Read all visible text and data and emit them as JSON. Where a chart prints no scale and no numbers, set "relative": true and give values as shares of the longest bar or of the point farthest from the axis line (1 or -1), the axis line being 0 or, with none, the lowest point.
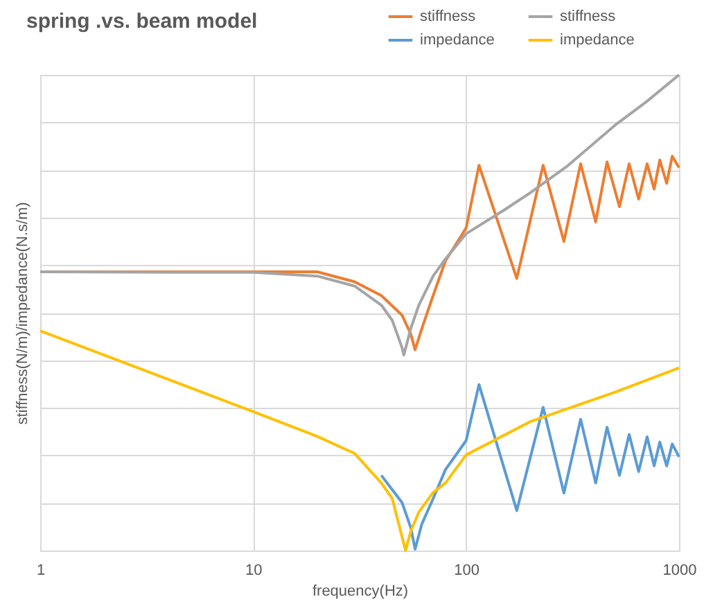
{
  "chart_data": {
    "type": "line",
    "title": "spring .vs. beam model",
    "xlabel": "frequency(Hz)",
    "ylabel": "stiffness(N/m)/impedance(N.s/m)",
    "relative": true,
    "log": "x",
    "xlim": [
      1,
      1000
    ],
    "xticks": [
      1,
      10,
      100,
      1000
    ],
    "grid": true,
    "legend": "top right",
    "marker": "none",
    "line_style": "solid",
    "series": [
      {
        "name": "stiffness",
        "color": "#ed7d31",
        "x": [
          1,
          10,
          20,
          30,
          40,
          50,
          55,
          57.6,
          62,
          70,
          80,
          100,
          115,
          173,
          230,
          288,
          345,
          406,
          459,
          525,
          583,
          646,
          708,
          764,
          812,
          875,
          929,
          1000
        ],
        "values": [
          0.586,
          0.586,
          0.586,
          0.565,
          0.536,
          0.495,
          0.455,
          0.422,
          0.467,
          0.536,
          0.609,
          0.678,
          0.81,
          0.572,
          0.81,
          0.65,
          0.813,
          0.691,
          0.817,
          0.723,
          0.813,
          0.739,
          0.813,
          0.76,
          0.821,
          0.772,
          0.829,
          0.805
        ]
      },
      {
        "name": "impedance",
        "color": "#5b9bd5",
        "x": [
          40,
          50,
          55,
          57.6,
          62,
          70,
          80,
          100,
          115,
          173,
          230,
          288,
          345,
          406,
          459,
          525,
          583,
          646,
          708,
          764,
          812,
          875,
          929,
          1000
        ],
        "values": [
          0.158,
          0.101,
          0.048,
          0.003,
          0.056,
          0.109,
          0.17,
          0.231,
          0.349,
          0.084,
          0.301,
          0.121,
          0.276,
          0.142,
          0.259,
          0.158,
          0.244,
          0.166,
          0.239,
          0.178,
          0.228,
          0.178,
          0.224,
          0.197
        ]
      },
      {
        "name": "stiffness",
        "color": "#a5a5a5",
        "x": [
          1,
          5,
          10,
          20,
          30,
          40,
          45,
          50,
          51,
          55,
          60,
          70,
          80,
          100,
          150,
          200,
          300,
          500,
          700,
          1000
        ],
        "values": [
          0.586,
          0.585,
          0.585,
          0.577,
          0.556,
          0.516,
          0.484,
          0.427,
          0.411,
          0.467,
          0.516,
          0.577,
          0.613,
          0.666,
          0.715,
          0.752,
          0.809,
          0.894,
          0.943,
          1
        ]
      },
      {
        "name": "impedance",
        "color": "#ffc000",
        "x": [
          1,
          10,
          20,
          30,
          40,
          45,
          52,
          55,
          60,
          70,
          80,
          100,
          200,
          500,
          1000
        ],
        "values": [
          0.462,
          0.292,
          0.24,
          0.204,
          0.142,
          0.109,
          0,
          0.041,
          0.081,
          0.122,
          0.142,
          0.201,
          0.271,
          0.333,
          0.384
        ]
      }
    ]
  }
}
